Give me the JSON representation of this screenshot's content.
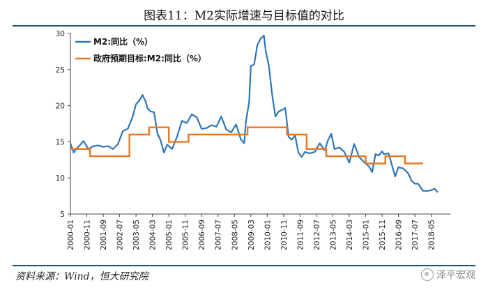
{
  "title": "图表11：M2实际增速与目标值的对比",
  "source": "资料来源：Wind，恒大研究院",
  "watermark": "泽平宏观",
  "colors": {
    "m2": "#2e75b6",
    "target": "#e87722",
    "frame": "#1f4e79"
  },
  "chart_data": {
    "type": "line",
    "title": "图表11：M2实际增速与目标值的对比",
    "xlabel": "",
    "ylabel": "",
    "ylim": [
      5,
      30
    ],
    "yticks": [
      5,
      10,
      15,
      20,
      25,
      30
    ],
    "xrange": [
      "2000-01",
      "2018-09"
    ],
    "xticks": [
      "2000-01",
      "2000-11",
      "2001-09",
      "2002-07",
      "2003-05",
      "2004-03",
      "2005-01",
      "2005-11",
      "2006-09",
      "2007-07",
      "2008-05",
      "2009-03",
      "2010-01",
      "2010-11",
      "2011-09",
      "2012-07",
      "2013-05",
      "2014-03",
      "2015-01",
      "2015-11",
      "2016-09",
      "2017-07",
      "2018-05"
    ],
    "legend": "top-left",
    "grid": false,
    "series": [
      {
        "name": "M2:同比（%）",
        "color": "#2e75b6",
        "points": [
          [
            "2000-01",
            14.8
          ],
          [
            "2000-03",
            13.5
          ],
          [
            "2000-05",
            14.1
          ],
          [
            "2000-07",
            14.6
          ],
          [
            "2000-09",
            15.1
          ],
          [
            "2000-12",
            14.0
          ],
          [
            "2001-03",
            14.4
          ],
          [
            "2001-06",
            14.5
          ],
          [
            "2001-09",
            14.3
          ],
          [
            "2001-12",
            14.4
          ],
          [
            "2002-03",
            14.0
          ],
          [
            "2002-06",
            14.7
          ],
          [
            "2002-09",
            16.5
          ],
          [
            "2002-12",
            16.8
          ],
          [
            "2003-03",
            18.5
          ],
          [
            "2003-05",
            20.2
          ],
          [
            "2003-07",
            20.7
          ],
          [
            "2003-09",
            21.5
          ],
          [
            "2003-11",
            20.5
          ],
          [
            "2003-12",
            19.6
          ],
          [
            "2004-02",
            19.2
          ],
          [
            "2004-04",
            19.1
          ],
          [
            "2004-06",
            16.2
          ],
          [
            "2004-08",
            15.2
          ],
          [
            "2004-10",
            13.5
          ],
          [
            "2004-12",
            14.6
          ],
          [
            "2005-03",
            14.0
          ],
          [
            "2005-06",
            15.7
          ],
          [
            "2005-09",
            17.9
          ],
          [
            "2005-12",
            17.6
          ],
          [
            "2006-03",
            18.8
          ],
          [
            "2006-06",
            18.4
          ],
          [
            "2006-09",
            16.8
          ],
          [
            "2006-12",
            16.9
          ],
          [
            "2007-03",
            17.3
          ],
          [
            "2007-06",
            17.1
          ],
          [
            "2007-09",
            18.5
          ],
          [
            "2007-12",
            16.7
          ],
          [
            "2008-03",
            16.3
          ],
          [
            "2008-06",
            17.4
          ],
          [
            "2008-09",
            15.3
          ],
          [
            "2008-11",
            14.8
          ],
          [
            "2008-12",
            17.8
          ],
          [
            "2009-02",
            20.5
          ],
          [
            "2009-03",
            25.5
          ],
          [
            "2009-05",
            25.7
          ],
          [
            "2009-07",
            28.4
          ],
          [
            "2009-09",
            29.3
          ],
          [
            "2009-11",
            29.7
          ],
          [
            "2009-12",
            27.7
          ],
          [
            "2010-02",
            25.5
          ],
          [
            "2010-04",
            21.5
          ],
          [
            "2010-06",
            18.5
          ],
          [
            "2010-08",
            19.2
          ],
          [
            "2010-11",
            19.5
          ],
          [
            "2010-12",
            19.7
          ],
          [
            "2011-02",
            15.7
          ],
          [
            "2011-04",
            15.3
          ],
          [
            "2011-06",
            15.9
          ],
          [
            "2011-08",
            13.5
          ],
          [
            "2011-10",
            12.9
          ],
          [
            "2011-12",
            13.6
          ],
          [
            "2012-03",
            13.4
          ],
          [
            "2012-06",
            13.6
          ],
          [
            "2012-09",
            14.8
          ],
          [
            "2012-12",
            13.8
          ],
          [
            "2013-02",
            15.2
          ],
          [
            "2013-04",
            16.1
          ],
          [
            "2013-06",
            14.0
          ],
          [
            "2013-09",
            14.2
          ],
          [
            "2013-12",
            13.6
          ],
          [
            "2014-03",
            12.1
          ],
          [
            "2014-06",
            14.7
          ],
          [
            "2014-09",
            12.9
          ],
          [
            "2014-12",
            12.2
          ],
          [
            "2015-03",
            11.6
          ],
          [
            "2015-05",
            10.8
          ],
          [
            "2015-07",
            13.3
          ],
          [
            "2015-09",
            13.1
          ],
          [
            "2015-11",
            13.7
          ],
          [
            "2015-12",
            13.3
          ],
          [
            "2016-03",
            13.4
          ],
          [
            "2016-05",
            11.8
          ],
          [
            "2016-07",
            10.2
          ],
          [
            "2016-09",
            11.5
          ],
          [
            "2016-12",
            11.3
          ],
          [
            "2017-03",
            10.6
          ],
          [
            "2017-05",
            9.6
          ],
          [
            "2017-07",
            9.2
          ],
          [
            "2017-09",
            9.2
          ],
          [
            "2017-12",
            8.2
          ],
          [
            "2018-03",
            8.2
          ],
          [
            "2018-05",
            8.3
          ],
          [
            "2018-07",
            8.5
          ],
          [
            "2018-09",
            8.0
          ]
        ]
      },
      {
        "name": "政府预期目标:M2:同比（%）",
        "color": "#e87722",
        "steps": [
          [
            "2000-01",
            14
          ],
          [
            "2001-01",
            13
          ],
          [
            "2002-01",
            13
          ],
          [
            "2003-01",
            16
          ],
          [
            "2004-01",
            17
          ],
          [
            "2005-01",
            15
          ],
          [
            "2006-01",
            16
          ],
          [
            "2007-01",
            16
          ],
          [
            "2008-01",
            16
          ],
          [
            "2009-01",
            17
          ],
          [
            "2010-01",
            17
          ],
          [
            "2011-01",
            16
          ],
          [
            "2012-01",
            14
          ],
          [
            "2013-01",
            13
          ],
          [
            "2014-01",
            13
          ],
          [
            "2015-01",
            12
          ],
          [
            "2016-01",
            13
          ],
          [
            "2017-01",
            12
          ],
          [
            "2017-12",
            12
          ]
        ]
      }
    ]
  }
}
